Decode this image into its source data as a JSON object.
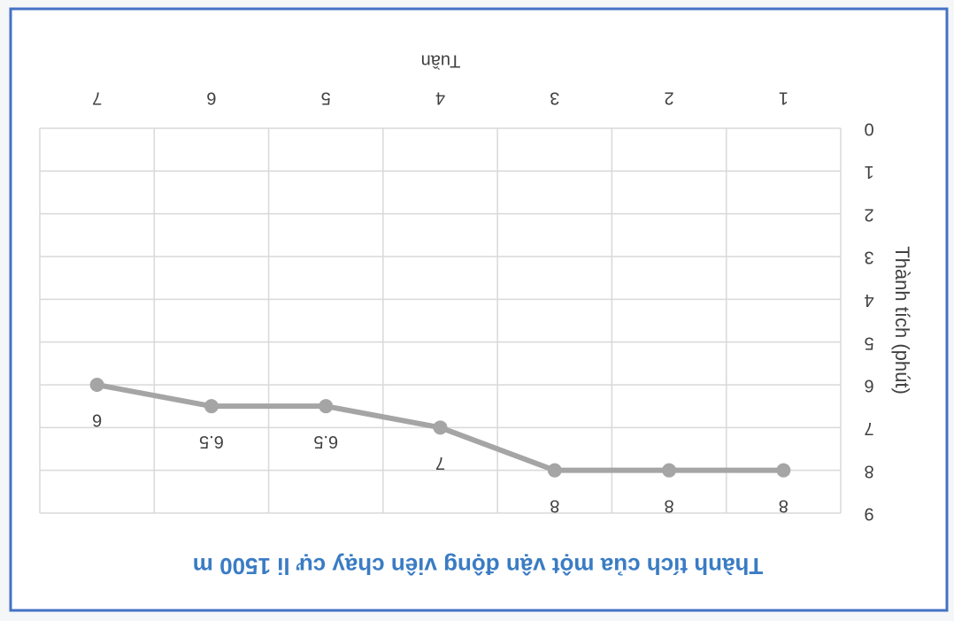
{
  "chart_data": {
    "type": "line",
    "title": "Thành tích của một vận động viên chạy cự li 1500 m",
    "x_label": "Tuần",
    "y_label": "Thành tích (phút)",
    "categories": [
      "1",
      "2",
      "3",
      "4",
      "5",
      "6",
      "7"
    ],
    "values": [
      8,
      8,
      8,
      7,
      6.5,
      6.5,
      6
    ],
    "color": "#a5a5a5",
    "ylim": [
      0,
      9
    ],
    "yticks": [
      0,
      1,
      2,
      3,
      4,
      5,
      6,
      7,
      8,
      9
    ],
    "grid": true,
    "rotated": 180
  }
}
